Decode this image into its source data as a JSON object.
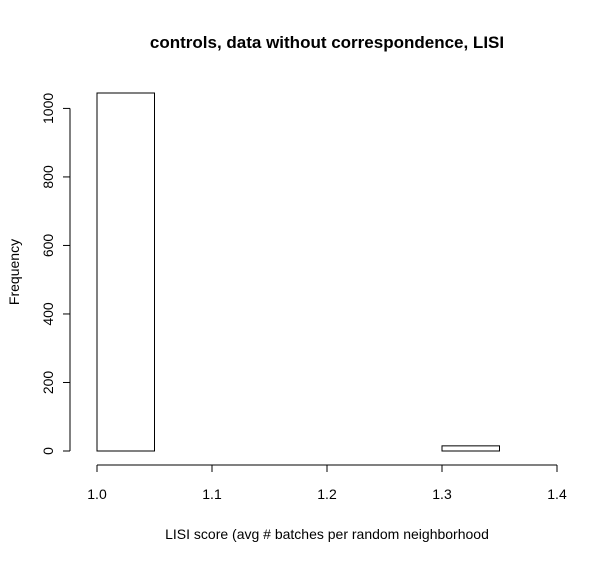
{
  "chart_data": {
    "type": "bar",
    "title": "controls, data without correspondence, LISI",
    "xlabel": "LISI score (avg # batches per random neighborhood",
    "ylabel": "Frequency",
    "bins": [
      {
        "start": 1.0,
        "end": 1.05,
        "count": 1045
      },
      {
        "start": 1.05,
        "end": 1.1,
        "count": 0
      },
      {
        "start": 1.1,
        "end": 1.15,
        "count": 0
      },
      {
        "start": 1.15,
        "end": 1.2,
        "count": 0
      },
      {
        "start": 1.2,
        "end": 1.25,
        "count": 0
      },
      {
        "start": 1.25,
        "end": 1.3,
        "count": 0
      },
      {
        "start": 1.3,
        "end": 1.35,
        "count": 15
      },
      {
        "start": 1.35,
        "end": 1.4,
        "count": 0
      }
    ],
    "xlim": [
      1.0,
      1.4
    ],
    "ylim": [
      0,
      1045
    ],
    "xticks": [
      "1.0",
      "1.1",
      "1.2",
      "1.3",
      "1.4"
    ],
    "yticks": [
      "0",
      "200",
      "400",
      "600",
      "800",
      "1000"
    ],
    "grid": false,
    "colors": {
      "bar_fill": "#ffffff",
      "bar_stroke": "#000000",
      "axis": "#000000"
    }
  }
}
